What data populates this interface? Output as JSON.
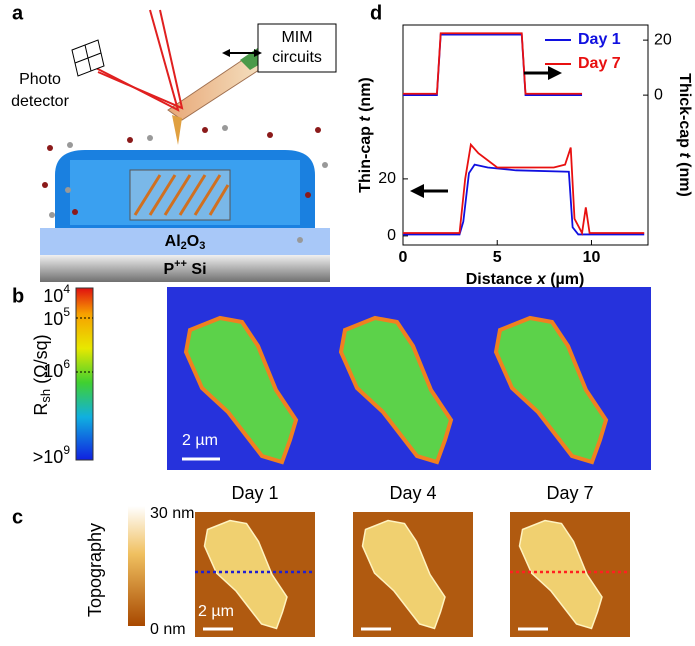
{
  "panel_labels": [
    "a",
    "b",
    "c",
    "d"
  ],
  "panel_a": {
    "mim_label": [
      "MIM",
      "circuits"
    ],
    "detector_label": [
      "Photo",
      "detector"
    ],
    "oxide_layer": [
      "Al",
      "2",
      "O",
      "3"
    ],
    "substrate_layer": [
      "P",
      "++",
      " Si"
    ]
  },
  "panel_b": {
    "colorbar_title": [
      "R",
      "sh",
      " (Ω/sq)"
    ],
    "colorbar_labels": [
      {
        "base": "10",
        "exponent": "4"
      },
      {
        "base": "10",
        "exponent": "5"
      },
      {
        "base": "10",
        "exponent": "6"
      },
      {
        "prefix": ">",
        "base": "10",
        "exponent": "9"
      }
    ],
    "scale_bar": "2 µm"
  },
  "panel_c": {
    "colorbar_title": "Topography",
    "colorbar_max": "30 nm",
    "colorbar_min": "0 nm",
    "image_titles": [
      "Day 1",
      "Day 4",
      "Day 7"
    ],
    "scale_bar": "2 µm"
  },
  "chart_data": {
    "type": "line",
    "xlabel": [
      "Distance ",
      "x",
      " (µm)"
    ],
    "ylabel": [
      "Thin-cap ",
      "t",
      " (nm)"
    ],
    "y2label": [
      "Thick-cap ",
      "t",
      " (nm)"
    ],
    "xlim": [
      0,
      13
    ],
    "xticks": [
      0,
      5,
      10
    ],
    "ylim": [
      -3.2,
      74
    ],
    "yticks": [
      0,
      20
    ],
    "y2lim": [
      -54.5,
      25.5
    ],
    "y2ticks": [
      0,
      20
    ],
    "legend": "upper right",
    "series": [
      {
        "name": "Day 1",
        "color": "#1010e0",
        "x": [
          0,
          3,
          3.2,
          3.5,
          3.8,
          4.5,
          6,
          8.8,
          9.0,
          9.3,
          12.8
        ],
        "values": [
          0.5,
          0.5,
          5,
          22,
          25,
          24,
          23,
          22.5,
          3,
          0.5,
          0.5
        ]
      },
      {
        "name": "Day 7",
        "color": "#e81010",
        "x": [
          0,
          3,
          3.3,
          3.6,
          4,
          5,
          8,
          8.6,
          8.9,
          9.1,
          9.5,
          9.7,
          9.9,
          12.8
        ],
        "values": [
          1,
          1,
          20,
          32,
          29,
          24,
          24,
          25,
          31,
          6,
          1,
          10,
          1,
          1
        ]
      },
      {
        "color": "#1010e0",
        "axis": "y2",
        "x": [
          0,
          1.8,
          2.0,
          6.3,
          6.5,
          9.5
        ],
        "values": [
          0,
          0,
          22,
          22,
          0,
          0
        ]
      },
      {
        "color": "#e81010",
        "axis": "y2",
        "x": [
          0,
          1.8,
          2.0,
          6.3,
          6.5,
          9.5
        ],
        "values": [
          0.5,
          0.5,
          22.5,
          22.5,
          0.5,
          0.5
        ]
      }
    ]
  }
}
